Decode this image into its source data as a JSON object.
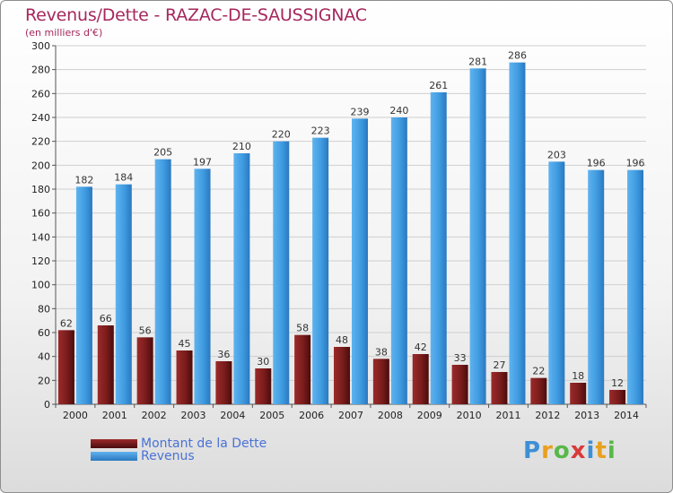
{
  "chart_data": {
    "type": "bar",
    "title": "Revenus/Dette - RAZAC-DE-SAUSSIGNAC",
    "subtitle": "(en milliers d'€)",
    "categories": [
      "2000",
      "2001",
      "2002",
      "2003",
      "2004",
      "2005",
      "2006",
      "2007",
      "2008",
      "2009",
      "2010",
      "2011",
      "2012",
      "2013",
      "2014"
    ],
    "series": [
      {
        "name": "Montant de la Dette",
        "color": "#7a1f1f",
        "values": [
          62,
          66,
          56,
          45,
          36,
          30,
          58,
          48,
          38,
          42,
          33,
          27,
          22,
          18,
          12
        ]
      },
      {
        "name": "Revenus",
        "color": "#3f9be0",
        "values": [
          182,
          184,
          205,
          197,
          210,
          220,
          223,
          239,
          240,
          261,
          281,
          286,
          203,
          196,
          196
        ]
      }
    ],
    "ylim": [
      0,
      300
    ],
    "yticks": [
      0,
      20,
      40,
      60,
      80,
      100,
      120,
      140,
      160,
      180,
      200,
      220,
      240,
      260,
      280,
      300
    ],
    "grid": true,
    "legend_position": "bottom-left"
  },
  "logo": {
    "letters": [
      "P",
      "r",
      "o",
      "x",
      "i",
      "t",
      "i"
    ],
    "colors": [
      "#3d8fd6",
      "#e8a020",
      "#58b848",
      "#d93a3a",
      "#3d8fd6",
      "#e8a020",
      "#58b848"
    ]
  }
}
